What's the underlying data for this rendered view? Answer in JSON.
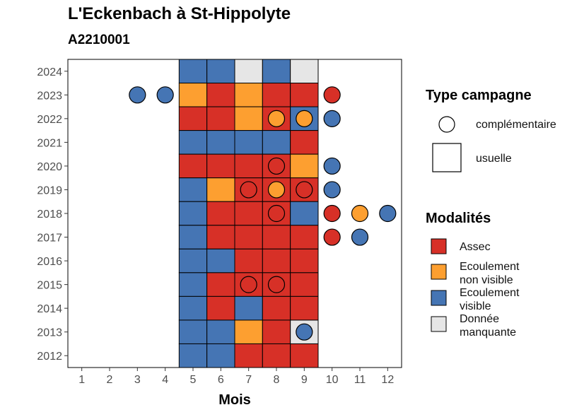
{
  "title": "L'Eckenbach à St-Hippolyte",
  "subtitle": "A2210001",
  "colors": {
    "assec": "#d73027",
    "ecoulement_non_visible": "#fd9f30",
    "ecoulement_visible": "#4575b4",
    "donnee_manquante": "#e6e6e6"
  },
  "legend": {
    "type_title": "Type campagne",
    "type_items": [
      {
        "label": "complémentaire",
        "shape": "circle"
      },
      {
        "label": "usuelle",
        "shape": "square"
      }
    ],
    "mod_title": "Modalités",
    "mod_items": [
      {
        "label": "Assec",
        "key": "assec"
      },
      {
        "label": "Ecoulement\nnon visible",
        "key": "ecoulement_non_visible"
      },
      {
        "label": "Ecoulement\nvisible",
        "key": "ecoulement_visible"
      },
      {
        "label": "Donnée\nmanquante",
        "key": "donnee_manquante"
      }
    ]
  },
  "chart_data": {
    "type": "heatmap",
    "xlabel": "Mois",
    "ylabel": "",
    "x_ticks": [
      "1",
      "2",
      "3",
      "4",
      "5",
      "6",
      "7",
      "8",
      "9",
      "10",
      "11",
      "12"
    ],
    "y_ticks": [
      "2012",
      "2013",
      "2014",
      "2015",
      "2016",
      "2017",
      "2018",
      "2019",
      "2020",
      "2021",
      "2022",
      "2023",
      "2024"
    ],
    "xlim": [
      0.5,
      12.5
    ],
    "ylim": [
      2011.5,
      2024.5
    ],
    "usuelle": [
      {
        "year": 2024,
        "months": [
          5,
          6,
          7,
          8,
          9
        ],
        "values": [
          "ecoulement_visible",
          "ecoulement_visible",
          "donnee_manquante",
          "ecoulement_visible",
          "donnee_manquante"
        ]
      },
      {
        "year": 2023,
        "months": [
          5,
          6,
          7,
          8,
          9
        ],
        "values": [
          "ecoulement_non_visible",
          "assec",
          "ecoulement_non_visible",
          "assec",
          "assec"
        ]
      },
      {
        "year": 2022,
        "months": [
          5,
          6,
          7,
          8,
          9
        ],
        "values": [
          "assec",
          "assec",
          "ecoulement_non_visible",
          "assec",
          "ecoulement_visible"
        ]
      },
      {
        "year": 2021,
        "months": [
          5,
          6,
          7,
          8,
          9
        ],
        "values": [
          "ecoulement_visible",
          "ecoulement_visible",
          "ecoulement_visible",
          "ecoulement_visible",
          "assec"
        ]
      },
      {
        "year": 2020,
        "months": [
          5,
          6,
          7,
          8,
          9
        ],
        "values": [
          "assec",
          "assec",
          "assec",
          "assec",
          "ecoulement_non_visible"
        ]
      },
      {
        "year": 2019,
        "months": [
          5,
          6,
          7,
          8,
          9
        ],
        "values": [
          "ecoulement_visible",
          "ecoulement_non_visible",
          "assec",
          "assec",
          "assec"
        ]
      },
      {
        "year": 2018,
        "months": [
          5,
          6,
          7,
          8,
          9
        ],
        "values": [
          "ecoulement_visible",
          "assec",
          "assec",
          "assec",
          "ecoulement_visible"
        ]
      },
      {
        "year": 2017,
        "months": [
          5,
          6,
          7,
          8,
          9
        ],
        "values": [
          "ecoulement_visible",
          "assec",
          "assec",
          "assec",
          "assec"
        ]
      },
      {
        "year": 2016,
        "months": [
          5,
          6,
          7,
          8,
          9
        ],
        "values": [
          "ecoulement_visible",
          "ecoulement_visible",
          "assec",
          "assec",
          "assec"
        ]
      },
      {
        "year": 2015,
        "months": [
          5,
          6,
          7,
          8,
          9
        ],
        "values": [
          "ecoulement_visible",
          "assec",
          "assec",
          "assec",
          "assec"
        ]
      },
      {
        "year": 2014,
        "months": [
          5,
          6,
          7,
          8,
          9
        ],
        "values": [
          "ecoulement_visible",
          "assec",
          "ecoulement_visible",
          "assec",
          "assec"
        ]
      },
      {
        "year": 2013,
        "months": [
          5,
          6,
          7,
          8,
          9
        ],
        "values": [
          "ecoulement_visible",
          "ecoulement_visible",
          "ecoulement_non_visible",
          "assec",
          "donnee_manquante"
        ]
      },
      {
        "year": 2012,
        "months": [
          5,
          6,
          7,
          8,
          9
        ],
        "values": [
          "ecoulement_visible",
          "ecoulement_visible",
          "assec",
          "assec",
          "assec"
        ]
      }
    ],
    "complementaire": [
      {
        "year": 2023,
        "month": 3,
        "value": "ecoulement_visible"
      },
      {
        "year": 2023,
        "month": 4,
        "value": "ecoulement_visible"
      },
      {
        "year": 2023,
        "month": 10,
        "value": "assec"
      },
      {
        "year": 2022,
        "month": 8,
        "value": "ecoulement_non_visible"
      },
      {
        "year": 2022,
        "month": 9,
        "value": "ecoulement_non_visible"
      },
      {
        "year": 2022,
        "month": 10,
        "value": "ecoulement_visible"
      },
      {
        "year": 2020,
        "month": 8,
        "value": "assec"
      },
      {
        "year": 2020,
        "month": 10,
        "value": "ecoulement_visible"
      },
      {
        "year": 2019,
        "month": 7,
        "value": "assec"
      },
      {
        "year": 2019,
        "month": 8,
        "value": "ecoulement_non_visible"
      },
      {
        "year": 2019,
        "month": 9,
        "value": "assec"
      },
      {
        "year": 2019,
        "month": 10,
        "value": "ecoulement_visible"
      },
      {
        "year": 2018,
        "month": 8,
        "value": "assec"
      },
      {
        "year": 2018,
        "month": 10,
        "value": "assec"
      },
      {
        "year": 2018,
        "month": 11,
        "value": "ecoulement_non_visible"
      },
      {
        "year": 2018,
        "month": 12,
        "value": "ecoulement_visible"
      },
      {
        "year": 2017,
        "month": 10,
        "value": "assec"
      },
      {
        "year": 2017,
        "month": 11,
        "value": "ecoulement_visible"
      },
      {
        "year": 2015,
        "month": 7,
        "value": "assec"
      },
      {
        "year": 2015,
        "month": 8,
        "value": "assec"
      },
      {
        "year": 2013,
        "month": 9,
        "value": "ecoulement_visible"
      }
    ]
  }
}
